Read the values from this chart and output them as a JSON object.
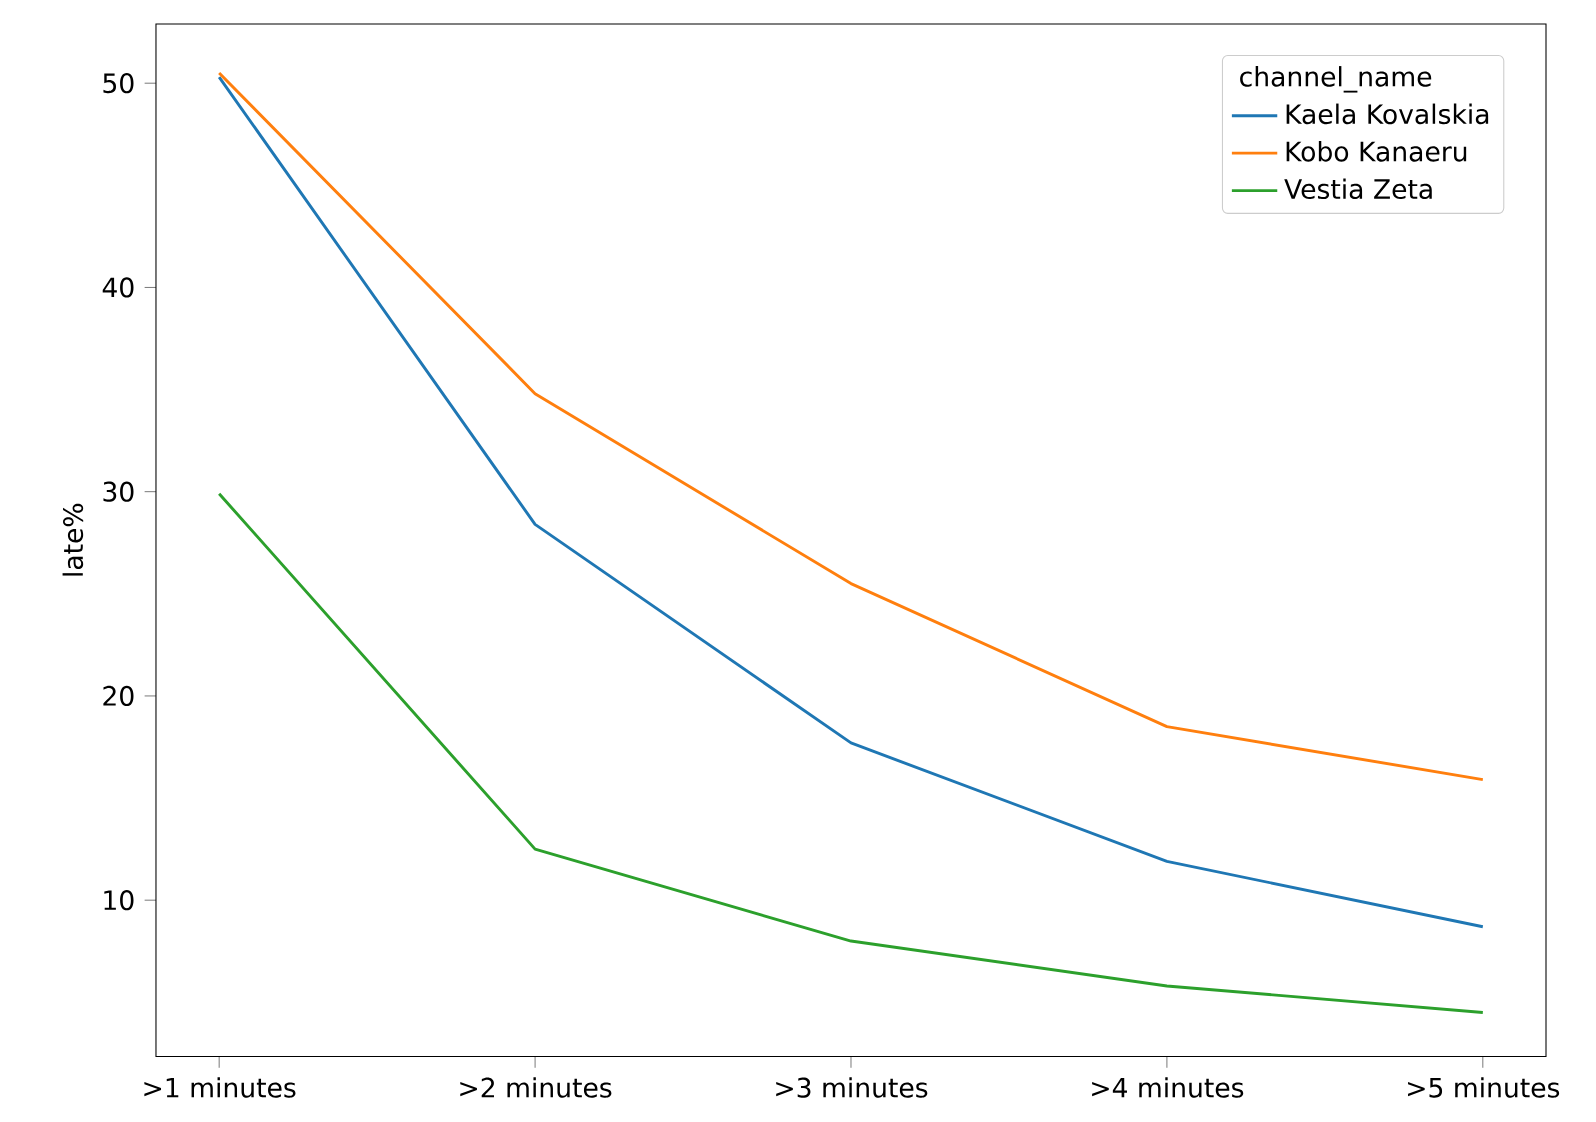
{
  "chart_data": {
    "type": "line",
    "ylabel": "late%",
    "legend_title": "channel_name",
    "categories": [
      ">1 minutes",
      ">2 minutes",
      ">3 minutes",
      ">4 minutes",
      ">5 minutes"
    ],
    "series": [
      {
        "name": "Kaela Kovalskia",
        "color": "#1f77b4",
        "values": [
          50.3,
          28.4,
          17.7,
          11.9,
          8.7
        ]
      },
      {
        "name": "Kobo Kanaeru",
        "color": "#ff7f0e",
        "values": [
          50.5,
          34.8,
          25.5,
          18.5,
          15.9
        ]
      },
      {
        "name": "Vestia Zeta",
        "color": "#2ca02c",
        "values": [
          29.9,
          12.5,
          8.0,
          5.8,
          4.5
        ]
      }
    ],
    "ylim": [
      2.35,
      52.9
    ],
    "yticks": [
      10,
      20,
      30,
      40,
      50
    ],
    "grid": false,
    "legend": "top right",
    "marker": "none",
    "line_style": "solid"
  }
}
